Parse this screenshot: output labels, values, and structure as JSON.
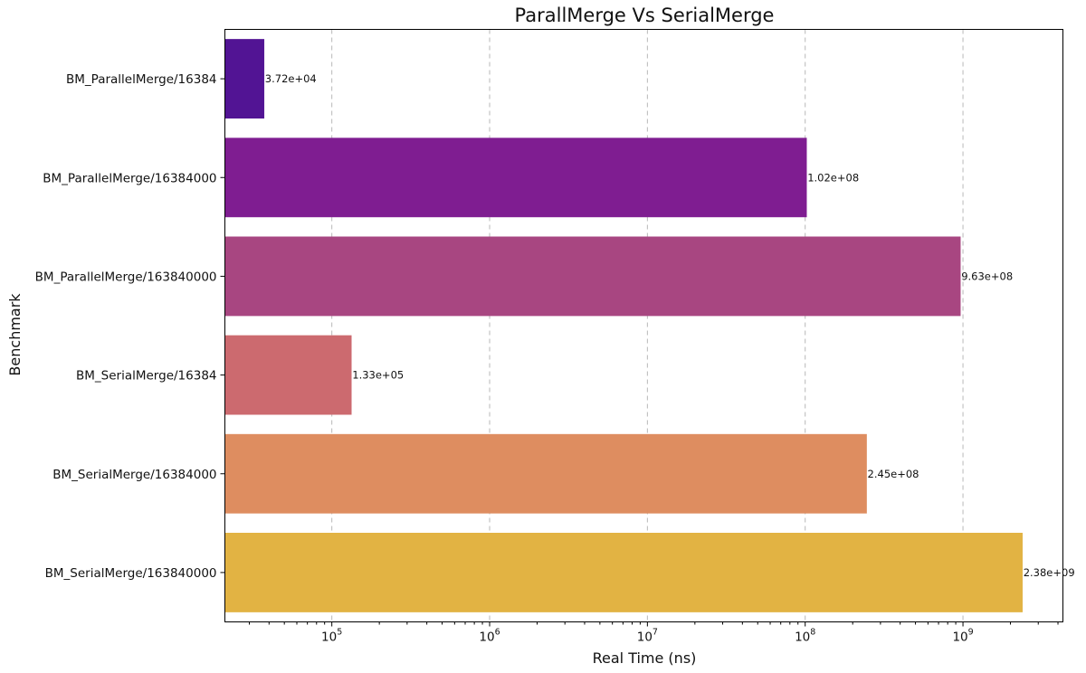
{
  "chart_data": {
    "type": "bar",
    "orientation": "horizontal",
    "title": "ParallMerge Vs SerialMerge",
    "xlabel": "Real Time (ns)",
    "ylabel": "Benchmark",
    "xscale": "log",
    "xlim": [
      21000,
      4300000000
    ],
    "grid": "vertical dashed",
    "xticks": [
      {
        "value": 100000,
        "base": "10",
        "exp": "5"
      },
      {
        "value": 1000000,
        "base": "10",
        "exp": "6"
      },
      {
        "value": 10000000,
        "base": "10",
        "exp": "7"
      },
      {
        "value": 100000000,
        "base": "10",
        "exp": "8"
      },
      {
        "value": 1000000000,
        "base": "10",
        "exp": "9"
      }
    ],
    "categories": [
      "BM_ParallelMerge/16384",
      "BM_ParallelMerge/16384000",
      "BM_ParallelMerge/163840000",
      "BM_SerialMerge/16384",
      "BM_SerialMerge/16384000",
      "BM_SerialMerge/163840000"
    ],
    "values": [
      37200,
      102000000,
      963000000,
      133000,
      245000000,
      2380000000
    ],
    "value_labels": [
      "3.72e+04",
      "1.02e+08",
      "9.63e+08",
      "1.33e+05",
      "2.45e+08",
      "2.38e+09"
    ],
    "colors": [
      "#521494",
      "#7f1d91",
      "#a84681",
      "#cc6a6f",
      "#de8d60",
      "#e2b343"
    ]
  }
}
